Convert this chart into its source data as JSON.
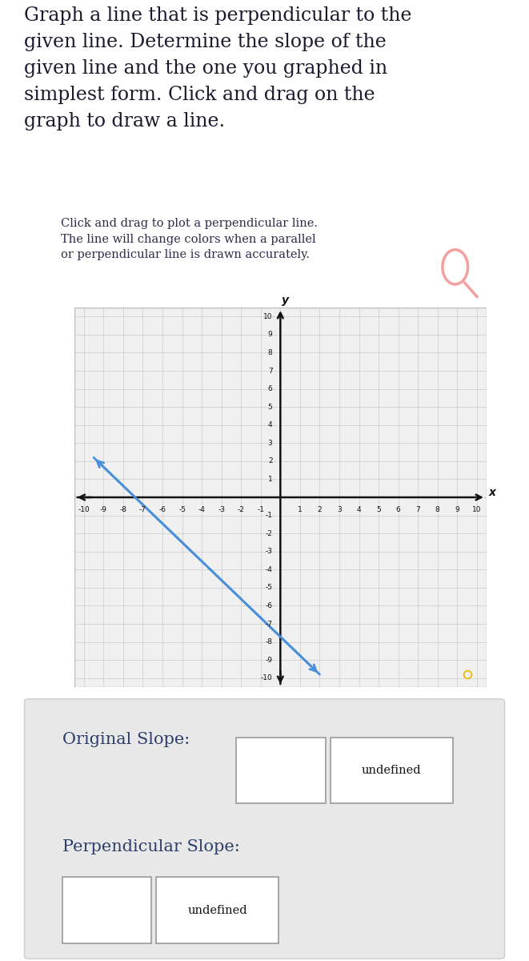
{
  "title_text": "Graph a line that is perpendicular to the\ngiven line. Determine the slope of the\ngiven line and the one you graphed in\nsimplest form. Click and drag on the\ngraph to draw a line.",
  "subtitle_text": "Click and drag to plot a perpendicular line.\nThe line will change colors when a parallel\nor perpendicular line is drawn accurately.",
  "title_fontsize": 17,
  "subtitle_fontsize": 10.5,
  "title_color": "#1a1a2e",
  "subtitle_color": "#2c2c4a",
  "bg_color": "#ffffff",
  "panel_bg": "#e8e8e8",
  "graph_bg": "#f0f0f0",
  "grid_color": "#cccccc",
  "axis_color": "#111111",
  "line_color": "#4a90d9",
  "line_x1": -9.5,
  "line_y1": 2.2,
  "line_x2": 2.0,
  "line_y2": -9.8,
  "xlim": [
    -10.5,
    10.5
  ],
  "ylim": [
    -10.5,
    10.5
  ],
  "xlabel": "x",
  "ylabel": "y",
  "magnifier_color": "#f4a0a0",
  "dot_color": "#e8c020",
  "dot_x": 9.5,
  "dot_y": -9.8,
  "orig_slope_label": "Original Slope:",
  "perp_slope_label": "Perpendicular Slope:",
  "undefined_text": "undefined",
  "label_color": "#2c3e6a",
  "label_fontsize": 15
}
